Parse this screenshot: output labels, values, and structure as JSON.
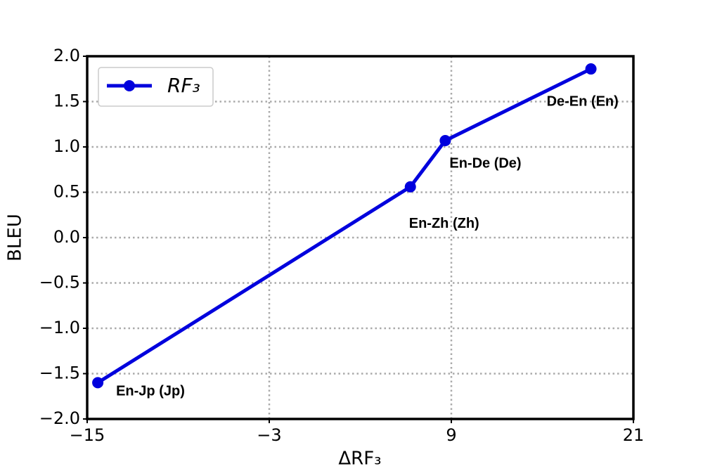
{
  "chart_data": {
    "type": "line",
    "x_label": "ΔRF₃",
    "y_label": "BLEU",
    "x": [
      -14.3,
      6.3,
      8.6,
      18.2
    ],
    "series": [
      {
        "name": "RF₃",
        "color": "#0000dd",
        "values": [
          -1.6,
          0.56,
          1.07,
          1.86
        ]
      }
    ],
    "annotations": [
      "En-Jp (Jp)",
      "En-Zh (Zh)",
      "En-De (De)",
      "De-En (En)"
    ],
    "xlim": [
      -15,
      21
    ],
    "xticks": [
      {
        "value": -15,
        "label": "−15"
      },
      {
        "value": -3,
        "label": "−3"
      },
      9,
      21
    ],
    "ylim": [
      -2,
      2
    ],
    "yticks": [
      {
        "value": -2,
        "label": "−2.0"
      },
      {
        "value": -1.5,
        "label": "−1.5"
      },
      {
        "value": -1,
        "label": "−1.0"
      },
      {
        "value": -0.5,
        "label": "−0.5"
      },
      {
        "value": 0,
        "label": "0.0"
      },
      {
        "value": 0.5,
        "label": "0.5"
      },
      {
        "value": 1,
        "label": "1.0"
      },
      {
        "value": 1.5,
        "label": "1.5"
      },
      {
        "value": 2,
        "label": "2.0"
      }
    ],
    "grid": true,
    "legend": "upper left"
  }
}
